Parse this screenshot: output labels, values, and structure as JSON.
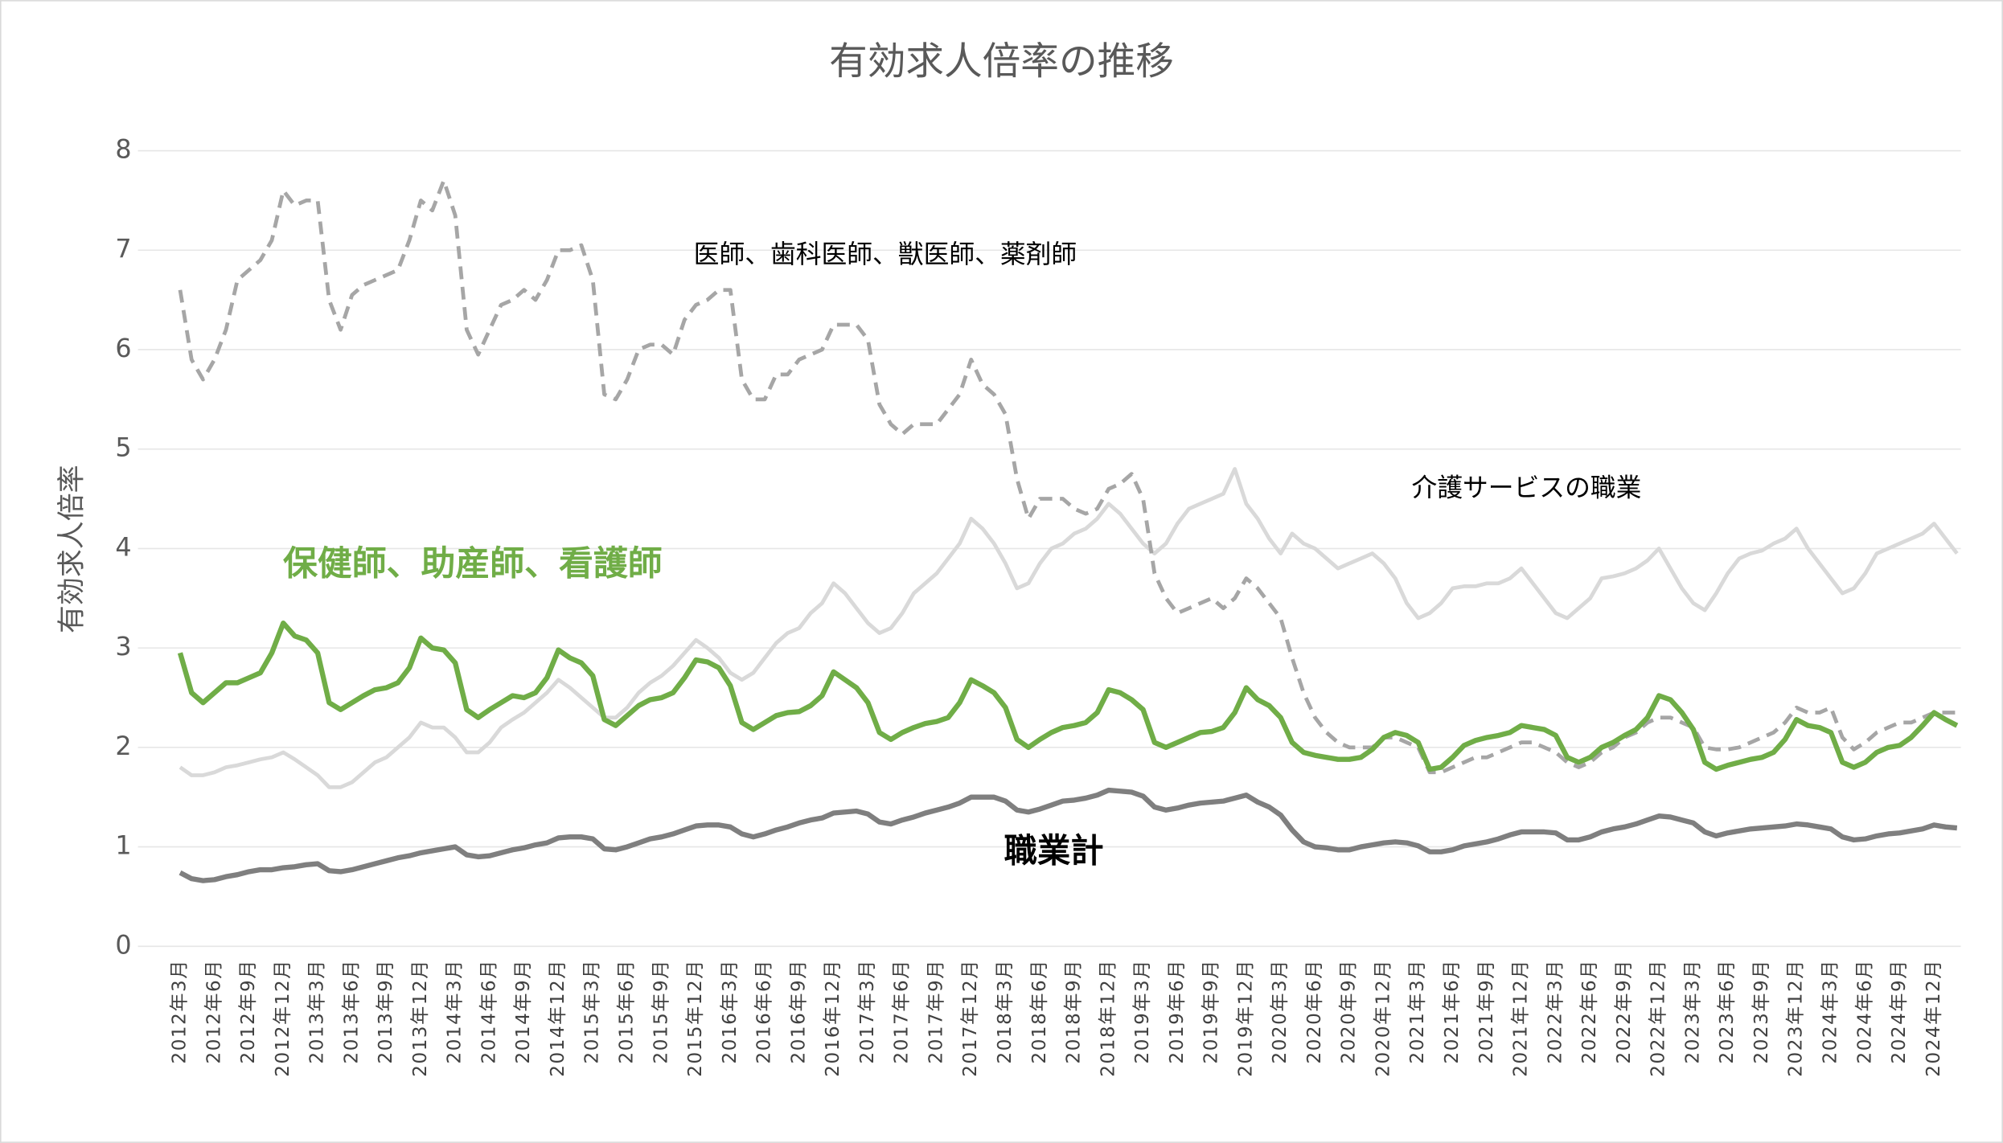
{
  "chart_data": {
    "type": "line",
    "title": "有効求人倍率の推移",
    "y_label": "有効求人倍率",
    "ylim": [
      0,
      8
    ],
    "yticks": [
      0,
      1,
      2,
      3,
      4,
      5,
      6,
      7,
      8
    ],
    "grid": true,
    "categories": [
      "2012年3月",
      null,
      null,
      "2012年6月",
      null,
      null,
      "2012年9月",
      null,
      null,
      "2012年12月",
      null,
      null,
      "2013年3月",
      null,
      null,
      "2013年6月",
      null,
      null,
      "2013年9月",
      null,
      null,
      "2013年12月",
      null,
      null,
      "2014年3月",
      null,
      null,
      "2014年6月",
      null,
      null,
      "2014年9月",
      null,
      null,
      "2014年12月",
      null,
      null,
      "2015年3月",
      null,
      null,
      "2015年6月",
      null,
      null,
      "2015年9月",
      null,
      null,
      "2015年12月",
      null,
      null,
      "2016年3月",
      null,
      null,
      "2016年6月",
      null,
      null,
      "2016年9月",
      null,
      null,
      "2016年12月",
      null,
      null,
      "2017年3月",
      null,
      null,
      "2017年6月",
      null,
      null,
      "2017年9月",
      null,
      null,
      "2017年12月",
      null,
      null,
      "2018年3月",
      null,
      null,
      "2018年6月",
      null,
      null,
      "2018年9月",
      null,
      null,
      "2018年12月",
      null,
      null,
      "2019年3月",
      null,
      null,
      "2019年6月",
      null,
      null,
      "2019年9月",
      null,
      null,
      "2019年12月",
      null,
      null,
      "2020年3月",
      null,
      null,
      "2020年6月",
      null,
      null,
      "2020年9月",
      null,
      null,
      "2020年12月",
      null,
      null,
      "2021年3月",
      null,
      null,
      "2021年6月",
      null,
      null,
      "2021年9月",
      null,
      null,
      "2021年12月",
      null,
      null,
      "2022年3月",
      null,
      null,
      "2022年6月",
      null,
      null,
      "2022年9月",
      null,
      null,
      "2022年12月",
      null,
      null,
      "2023年3月",
      null,
      null,
      "2023年6月",
      null,
      null,
      "2023年9月",
      null,
      null,
      "2023年12月",
      null,
      null,
      "2024年3月",
      null,
      null,
      "2024年6月",
      null,
      null,
      "2024年9月",
      null,
      null,
      "2024年12月",
      null,
      null
    ],
    "series": [
      {
        "name": "職業計",
        "color": "#7f7f7f",
        "dashed": false,
        "values": [
          0.74,
          0.68,
          0.66,
          0.67,
          0.7,
          0.72,
          0.75,
          0.77,
          0.77,
          0.79,
          0.8,
          0.82,
          0.83,
          0.76,
          0.75,
          0.77,
          0.8,
          0.83,
          0.86,
          0.89,
          0.91,
          0.94,
          0.96,
          0.98,
          1.0,
          0.92,
          0.9,
          0.91,
          0.94,
          0.97,
          0.99,
          1.02,
          1.04,
          1.09,
          1.1,
          1.1,
          1.08,
          0.98,
          0.97,
          1.0,
          1.04,
          1.08,
          1.1,
          1.13,
          1.17,
          1.21,
          1.22,
          1.22,
          1.2,
          1.13,
          1.1,
          1.13,
          1.17,
          1.2,
          1.24,
          1.27,
          1.29,
          1.34,
          1.35,
          1.36,
          1.33,
          1.25,
          1.23,
          1.27,
          1.3,
          1.34,
          1.37,
          1.4,
          1.44,
          1.5,
          1.5,
          1.5,
          1.46,
          1.37,
          1.35,
          1.38,
          1.42,
          1.46,
          1.47,
          1.49,
          1.52,
          1.57,
          1.56,
          1.55,
          1.51,
          1.4,
          1.37,
          1.39,
          1.42,
          1.44,
          1.45,
          1.46,
          1.49,
          1.52,
          1.45,
          1.4,
          1.32,
          1.17,
          1.05,
          1.0,
          0.99,
          0.97,
          0.97,
          1.0,
          1.02,
          1.04,
          1.05,
          1.04,
          1.01,
          0.95,
          0.95,
          0.97,
          1.01,
          1.03,
          1.05,
          1.08,
          1.12,
          1.15,
          1.15,
          1.15,
          1.14,
          1.07,
          1.07,
          1.1,
          1.15,
          1.18,
          1.2,
          1.23,
          1.27,
          1.31,
          1.3,
          1.27,
          1.24,
          1.15,
          1.11,
          1.14,
          1.16,
          1.18,
          1.19,
          1.2,
          1.21,
          1.23,
          1.22,
          1.2,
          1.18,
          1.1,
          1.07,
          1.08,
          1.11,
          1.13,
          1.14,
          1.16,
          1.18,
          1.22,
          1.2,
          1.19
        ]
      },
      {
        "name": "介護サービスの職業",
        "color": "#d9d9d9",
        "dashed": false,
        "values": [
          1.8,
          1.72,
          1.72,
          1.75,
          1.8,
          1.82,
          1.85,
          1.88,
          1.9,
          1.95,
          1.88,
          1.8,
          1.72,
          1.6,
          1.6,
          1.65,
          1.75,
          1.85,
          1.9,
          2.0,
          2.1,
          2.25,
          2.2,
          2.2,
          2.1,
          1.95,
          1.95,
          2.05,
          2.2,
          2.28,
          2.35,
          2.45,
          2.55,
          2.68,
          2.6,
          2.5,
          2.4,
          2.3,
          2.3,
          2.4,
          2.55,
          2.65,
          2.72,
          2.82,
          2.95,
          3.08,
          3.0,
          2.9,
          2.75,
          2.68,
          2.75,
          2.9,
          3.05,
          3.15,
          3.2,
          3.35,
          3.45,
          3.65,
          3.55,
          3.4,
          3.25,
          3.15,
          3.2,
          3.35,
          3.55,
          3.65,
          3.75,
          3.9,
          4.05,
          4.3,
          4.2,
          4.05,
          3.85,
          3.6,
          3.65,
          3.85,
          4.0,
          4.05,
          4.15,
          4.2,
          4.3,
          4.45,
          4.35,
          4.2,
          4.05,
          3.95,
          4.05,
          4.25,
          4.4,
          4.45,
          4.5,
          4.55,
          4.8,
          4.45,
          4.3,
          4.1,
          3.95,
          4.15,
          4.05,
          4.0,
          3.9,
          3.8,
          3.85,
          3.9,
          3.95,
          3.85,
          3.7,
          3.45,
          3.3,
          3.35,
          3.45,
          3.6,
          3.62,
          3.62,
          3.65,
          3.65,
          3.7,
          3.8,
          3.65,
          3.5,
          3.35,
          3.3,
          3.4,
          3.5,
          3.7,
          3.72,
          3.75,
          3.8,
          3.88,
          4.0,
          3.8,
          3.6,
          3.45,
          3.38,
          3.55,
          3.75,
          3.9,
          3.95,
          3.98,
          4.05,
          4.1,
          4.2,
          4.0,
          3.85,
          3.7,
          3.55,
          3.6,
          3.75,
          3.95,
          4.0,
          4.05,
          4.1,
          4.15,
          4.25,
          4.1,
          3.95
        ]
      },
      {
        "name": "医師、歯科医師、獣医師、薬剤師",
        "color": "#a6a6a6",
        "dashed": true,
        "values": [
          6.6,
          5.9,
          5.7,
          5.9,
          6.2,
          6.7,
          6.8,
          6.9,
          7.1,
          7.6,
          7.45,
          7.5,
          7.5,
          6.5,
          6.2,
          6.55,
          6.65,
          6.7,
          6.75,
          6.8,
          7.1,
          7.5,
          7.4,
          7.7,
          7.35,
          6.2,
          5.95,
          6.2,
          6.45,
          6.5,
          6.6,
          6.5,
          6.7,
          7.0,
          7.0,
          7.05,
          6.7,
          5.55,
          5.5,
          5.7,
          6.0,
          6.05,
          6.05,
          5.95,
          6.3,
          6.45,
          6.5,
          6.6,
          6.6,
          5.7,
          5.5,
          5.5,
          5.75,
          5.75,
          5.9,
          5.95,
          6.0,
          6.25,
          6.25,
          6.25,
          6.1,
          5.45,
          5.25,
          5.15,
          5.25,
          5.25,
          5.25,
          5.4,
          5.55,
          5.9,
          5.65,
          5.55,
          5.35,
          4.7,
          4.3,
          4.5,
          4.5,
          4.5,
          4.4,
          4.35,
          4.4,
          4.6,
          4.65,
          4.75,
          4.5,
          3.75,
          3.5,
          3.35,
          3.4,
          3.45,
          3.5,
          3.4,
          3.5,
          3.7,
          3.6,
          3.45,
          3.3,
          2.9,
          2.55,
          2.3,
          2.15,
          2.05,
          2.0,
          2.0,
          2.0,
          2.1,
          2.1,
          2.05,
          2.0,
          1.75,
          1.75,
          1.8,
          1.85,
          1.9,
          1.9,
          1.95,
          2.0,
          2.05,
          2.05,
          2.0,
          1.95,
          1.85,
          1.8,
          1.85,
          1.95,
          2.0,
          2.1,
          2.15,
          2.25,
          2.3,
          2.3,
          2.25,
          2.2,
          2.0,
          1.98,
          1.98,
          2.0,
          2.05,
          2.1,
          2.15,
          2.25,
          2.4,
          2.35,
          2.35,
          2.4,
          2.1,
          1.98,
          2.05,
          2.15,
          2.2,
          2.25,
          2.25,
          2.3,
          2.35,
          2.35,
          2.35
        ]
      },
      {
        "name": "保健師、助産師、看護師",
        "color": "#70ad47",
        "dashed": false,
        "values": [
          2.95,
          2.55,
          2.45,
          2.55,
          2.65,
          2.65,
          2.7,
          2.75,
          2.95,
          3.25,
          3.12,
          3.08,
          2.95,
          2.45,
          2.38,
          2.45,
          2.52,
          2.58,
          2.6,
          2.65,
          2.8,
          3.1,
          3.0,
          2.98,
          2.85,
          2.38,
          2.3,
          2.38,
          2.45,
          2.52,
          2.5,
          2.55,
          2.7,
          2.98,
          2.9,
          2.85,
          2.72,
          2.28,
          2.22,
          2.32,
          2.42,
          2.48,
          2.5,
          2.55,
          2.7,
          2.88,
          2.86,
          2.8,
          2.62,
          2.25,
          2.18,
          2.25,
          2.32,
          2.35,
          2.36,
          2.42,
          2.52,
          2.76,
          2.68,
          2.6,
          2.45,
          2.15,
          2.08,
          2.15,
          2.2,
          2.24,
          2.26,
          2.3,
          2.45,
          2.68,
          2.62,
          2.55,
          2.4,
          2.08,
          2.0,
          2.08,
          2.15,
          2.2,
          2.22,
          2.25,
          2.35,
          2.58,
          2.55,
          2.48,
          2.38,
          2.05,
          2.0,
          2.05,
          2.1,
          2.15,
          2.16,
          2.2,
          2.35,
          2.6,
          2.48,
          2.42,
          2.3,
          2.05,
          1.95,
          1.92,
          1.9,
          1.88,
          1.88,
          1.9,
          1.98,
          2.1,
          2.15,
          2.12,
          2.05,
          1.78,
          1.8,
          1.9,
          2.02,
          2.07,
          2.1,
          2.12,
          2.15,
          2.22,
          2.2,
          2.18,
          2.12,
          1.9,
          1.85,
          1.9,
          2.0,
          2.05,
          2.12,
          2.18,
          2.3,
          2.52,
          2.48,
          2.35,
          2.18,
          1.85,
          1.78,
          1.82,
          1.85,
          1.88,
          1.9,
          1.95,
          2.08,
          2.28,
          2.22,
          2.2,
          2.15,
          1.85,
          1.8,
          1.85,
          1.95,
          2.0,
          2.02,
          2.1,
          2.22,
          2.35,
          2.28,
          2.22
        ]
      }
    ]
  }
}
